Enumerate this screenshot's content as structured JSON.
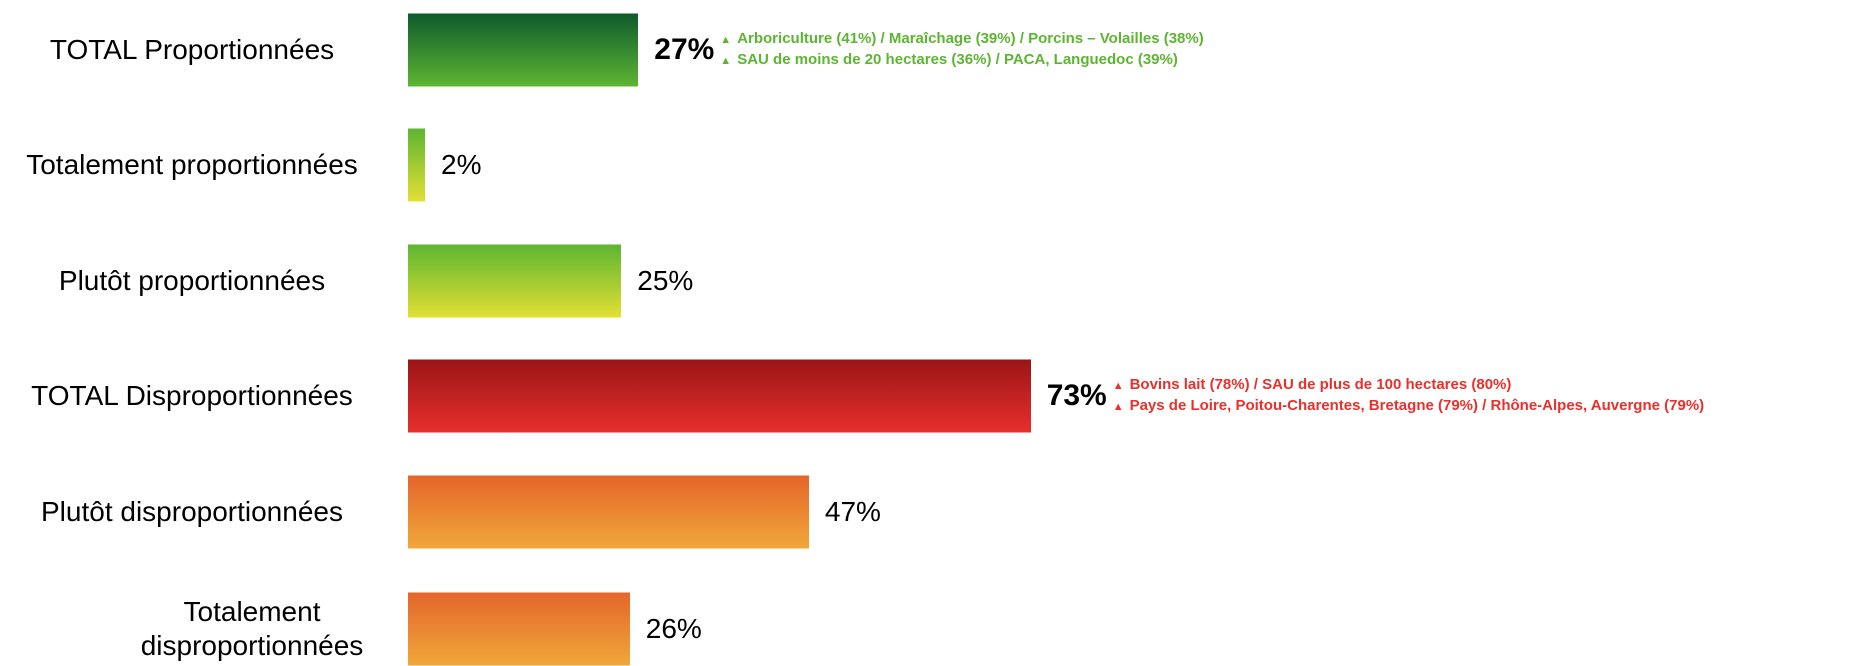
{
  "chart_data": {
    "type": "bar",
    "orientation": "horizontal",
    "categories": [
      "TOTAL Proportionnées",
      "Totalement proportionnées",
      "Plutôt proportionnées",
      "TOTAL Disproportionnées",
      "Plutôt disproportionnées",
      "Totalement disproportionnées"
    ],
    "values": [
      27,
      2,
      25,
      73,
      47,
      26
    ],
    "value_labels": [
      "27%",
      "2%",
      "25%",
      "73%",
      "47%",
      "26%"
    ],
    "colors": [
      [
        "#0f5a2c",
        "#5db532"
      ],
      [
        "#5db532",
        "#e3e033"
      ],
      [
        "#5db532",
        "#e3e033"
      ],
      [
        "#9b1418",
        "#e8302c"
      ],
      [
        "#e4652a",
        "#f0a73a"
      ],
      [
        "#e4652a",
        "#f0a73a"
      ]
    ],
    "annotations": [
      {
        "color": "#5db532",
        "lines": [
          "Arboriculture (41%) / Maraîchage (39%) / Porcins – Volailles (38%)",
          "SAU de moins de 20 hectares (36%) / PACA, Languedoc (39%)"
        ]
      },
      {
        "color": "#e8302c",
        "lines": [
          "Bovins lait (78%) / SAU de plus de 100 hectares (80%)",
          "Pays de Loire, Poitou-Charentes, Bretagne (79%) / Rhône-Alpes, Auvergne (79%)"
        ]
      }
    ]
  }
}
